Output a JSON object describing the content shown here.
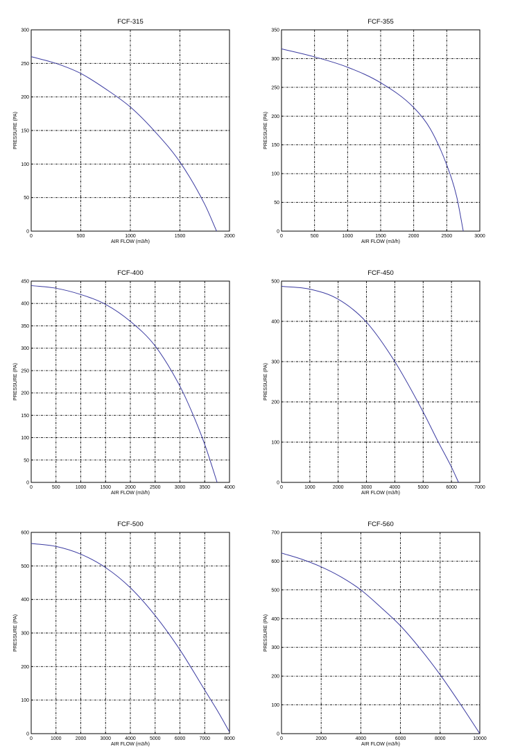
{
  "page": {
    "x_axis_label": "AIR FLOW (m3/h)",
    "y_axis_label": "PRESSURE (PA)"
  },
  "colors": {
    "curve": "#3a3aa0",
    "frame": "#000000",
    "grid": "#000000",
    "background": "#ffffff"
  },
  "chart_data": [
    {
      "type": "line",
      "title": "FCF-315",
      "xlabel": "AIR FLOW (m3/h)",
      "ylabel": "PRESSURE (PA)",
      "xlim": [
        0,
        2000
      ],
      "ylim": [
        0,
        300
      ],
      "xticks": [
        0,
        500,
        1000,
        1500,
        2000
      ],
      "yticks": [
        0,
        50,
        100,
        150,
        200,
        250,
        300
      ],
      "grid": true,
      "series": [
        {
          "x": [
            0,
            250,
            500,
            750,
            1000,
            1250,
            1500,
            1750,
            1870
          ],
          "y": [
            260,
            250,
            235,
            212,
            185,
            148,
            103,
            40,
            0
          ]
        }
      ]
    },
    {
      "type": "line",
      "title": "FCF-355",
      "xlabel": "AIR FLOW (m3/h)",
      "ylabel": "PRESSURE (PA)",
      "xlim": [
        0,
        3000
      ],
      "ylim": [
        0,
        350
      ],
      "xticks": [
        0,
        500,
        1000,
        1500,
        2000,
        2500,
        3000
      ],
      "yticks": [
        0,
        50,
        100,
        150,
        200,
        250,
        300,
        350
      ],
      "grid": true,
      "series": [
        {
          "x": [
            0,
            500,
            1000,
            1500,
            2000,
            2250,
            2500,
            2650,
            2750
          ],
          "y": [
            317,
            303,
            285,
            258,
            215,
            178,
            115,
            60,
            0
          ]
        }
      ]
    },
    {
      "type": "line",
      "title": "FCF-400",
      "xlabel": "AIR FLOW (m3/h)",
      "ylabel": "PRESSURE (PA)",
      "xlim": [
        0,
        4000
      ],
      "ylim": [
        0,
        450
      ],
      "xticks": [
        0,
        500,
        1000,
        1500,
        2000,
        2500,
        3000,
        3500,
        4000
      ],
      "yticks": [
        0,
        50,
        100,
        150,
        200,
        250,
        300,
        350,
        400,
        450
      ],
      "grid": true,
      "series": [
        {
          "x": [
            0,
            500,
            1000,
            1500,
            2000,
            2500,
            3000,
            3250,
            3500,
            3650,
            3750
          ],
          "y": [
            440,
            434,
            420,
            398,
            360,
            305,
            215,
            155,
            85,
            35,
            0
          ]
        }
      ]
    },
    {
      "type": "line",
      "title": "FCF-450",
      "xlabel": "AIR FLOW (m3/h)",
      "ylabel": "PRESSURE (PA)",
      "xlim": [
        0,
        7000
      ],
      "ylim": [
        0,
        500
      ],
      "xticks": [
        0,
        1000,
        2000,
        3000,
        4000,
        5000,
        6000,
        7000
      ],
      "yticks": [
        0,
        100,
        200,
        300,
        400,
        500
      ],
      "grid": true,
      "series": [
        {
          "x": [
            0,
            1000,
            2000,
            3000,
            4000,
            5000,
            5500,
            6000,
            6250
          ],
          "y": [
            487,
            480,
            455,
            398,
            300,
            175,
            105,
            38,
            0
          ]
        }
      ]
    },
    {
      "type": "line",
      "title": "FCF-500",
      "xlabel": "AIR FLOW (m3/h)",
      "ylabel": "PRESSURE (PA)",
      "xlim": [
        0,
        8000
      ],
      "ylim": [
        0,
        600
      ],
      "xticks": [
        0,
        1000,
        2000,
        3000,
        4000,
        5000,
        6000,
        7000,
        8000
      ],
      "yticks": [
        0,
        100,
        200,
        300,
        400,
        500,
        600
      ],
      "grid": true,
      "series": [
        {
          "x": [
            0,
            1000,
            2000,
            3000,
            4000,
            5000,
            6000,
            7000,
            7500,
            8000
          ],
          "y": [
            567,
            558,
            535,
            495,
            435,
            352,
            250,
            130,
            70,
            5
          ]
        }
      ]
    },
    {
      "type": "line",
      "title": "FCF-560",
      "xlabel": "AIR FLOW (m3/h)",
      "ylabel": "PRESSURE (PA)",
      "xlim": [
        0,
        10000
      ],
      "ylim": [
        0,
        700
      ],
      "xticks": [
        0,
        2000,
        4000,
        6000,
        8000,
        10000
      ],
      "yticks": [
        0,
        100,
        200,
        300,
        400,
        500,
        600,
        700
      ],
      "grid": true,
      "series": [
        {
          "x": [
            0,
            1000,
            2000,
            3000,
            4000,
            5000,
            6000,
            7000,
            8000,
            9000,
            10000
          ],
          "y": [
            628,
            607,
            580,
            545,
            500,
            440,
            375,
            295,
            205,
            105,
            0
          ]
        }
      ]
    }
  ]
}
